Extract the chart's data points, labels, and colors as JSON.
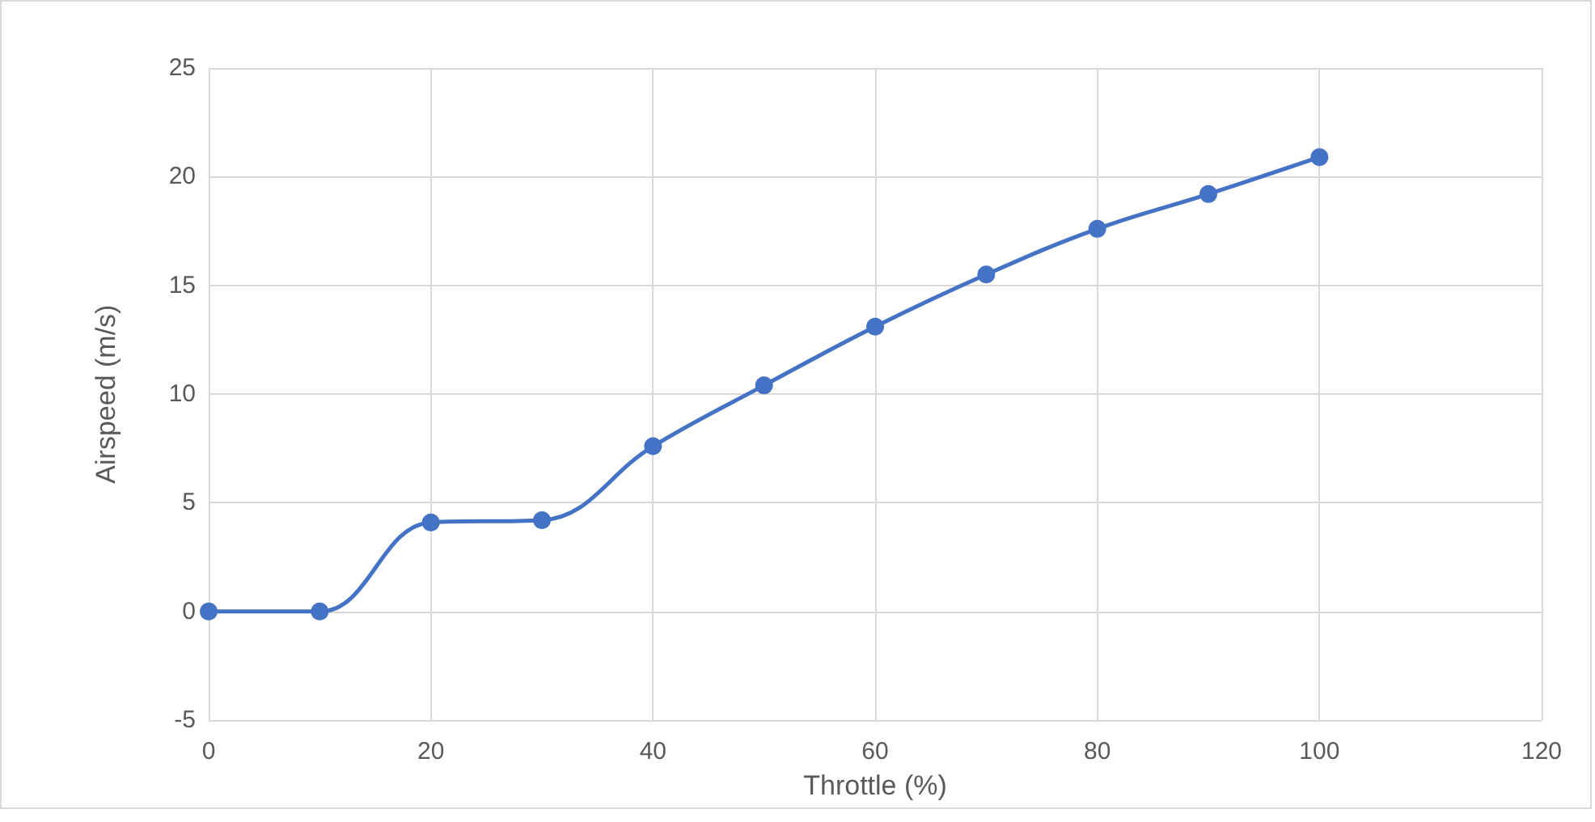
{
  "chart_data": {
    "type": "line",
    "xlabel": "Throttle (%)",
    "ylabel": "Airspeed (m/s)",
    "x": [
      0,
      10,
      20,
      30,
      40,
      50,
      60,
      70,
      80,
      90,
      100
    ],
    "series": [
      {
        "color": "#4472c4",
        "values": [
          0,
          0,
          4.1,
          4.2,
          7.6,
          10.4,
          13.1,
          15.5,
          17.6,
          19.2,
          20.9
        ]
      }
    ],
    "xlim": [
      0,
      120
    ],
    "xticks": [
      0,
      20,
      40,
      60,
      80,
      100,
      120
    ],
    "ylim": [
      -5,
      25
    ],
    "yticks": [
      -5,
      0,
      5,
      10,
      15,
      20,
      25
    ],
    "grid": true,
    "marker": "circle",
    "line_style": "solid"
  }
}
